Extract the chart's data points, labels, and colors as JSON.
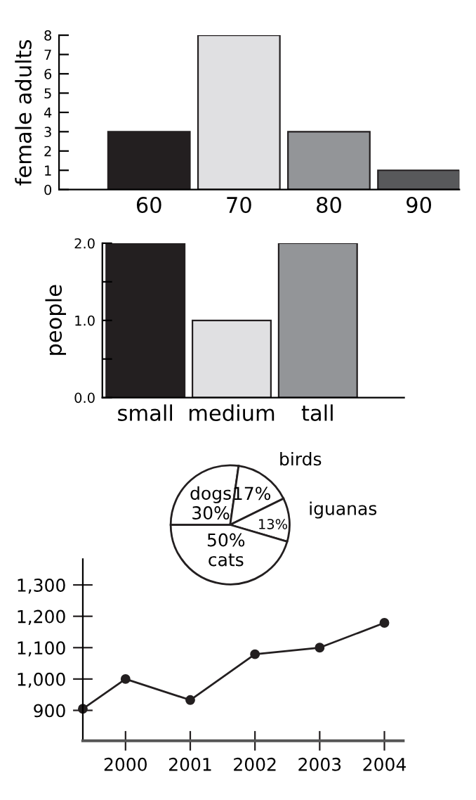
{
  "chart_data": [
    {
      "type": "bar",
      "ylabel": "female adults",
      "categories": [
        "60",
        "70",
        "80",
        "90"
      ],
      "values": [
        3,
        8,
        3,
        1
      ],
      "colors": [
        "#231f20",
        "#e0e0e2",
        "#939598",
        "#58595b"
      ],
      "ylim": [
        0,
        8
      ],
      "yticks": [
        0,
        1,
        2,
        3,
        4,
        5,
        6,
        7,
        8
      ],
      "grid": false,
      "legend": false
    },
    {
      "type": "bar",
      "ylabel": "people",
      "categories": [
        "small",
        "medium",
        "tall"
      ],
      "values": [
        2,
        1,
        2
      ],
      "colors": [
        "#231f20",
        "#e0e0e2",
        "#939598"
      ],
      "ylim": [
        0,
        2
      ],
      "yticks": [
        {
          "value": 0,
          "label": "0.0"
        },
        {
          "value": 0.5,
          "label": null
        },
        {
          "value": 1,
          "label": "1.0"
        },
        {
          "value": 1.5,
          "label": null
        },
        {
          "value": 2,
          "label": "2.0"
        }
      ],
      "grid": false,
      "legend": false
    },
    {
      "type": "pie",
      "categories": [
        "dogs",
        "birds",
        "iguanas",
        "cats"
      ],
      "values": [
        30,
        17,
        13,
        50
      ],
      "value_labels": [
        "30%",
        "17%",
        "13%",
        "50%"
      ],
      "colors": [
        "#ffffff",
        "#ffffff",
        "#ffffff",
        "#ffffff"
      ],
      "legend": false
    },
    {
      "type": "line",
      "x": [
        1999.34,
        2000,
        2001,
        2002,
        2003,
        2004
      ],
      "values": [
        905,
        1000,
        933,
        1079,
        1100,
        1179
      ],
      "color": "#231f20",
      "marker": "circle",
      "line_style": "solid",
      "xlim": [
        1999.34,
        2004.29
      ],
      "xticks": [
        2000,
        2001,
        2002,
        2003,
        2004
      ],
      "ylim": [
        803,
        1382
      ],
      "yticks": [
        {
          "value": 900,
          "label": "900"
        },
        {
          "value": 1000,
          "label": "1,000"
        },
        {
          "value": 1100,
          "label": "1,100"
        },
        {
          "value": 1200,
          "label": "1,200"
        },
        {
          "value": 1300,
          "label": "1,300"
        }
      ],
      "grid": false,
      "legend": false
    }
  ]
}
